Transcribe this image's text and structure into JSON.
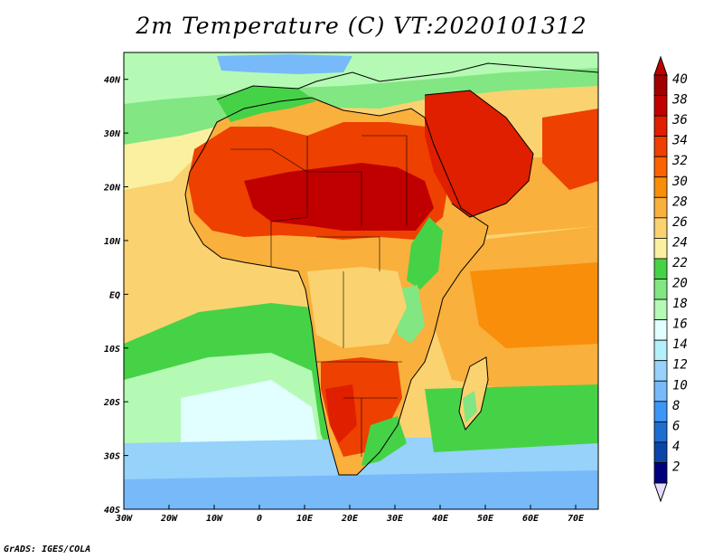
{
  "title": "2m Temperature (C) VT:2020101312",
  "credit": "GrADS: IGES/COLA",
  "map": {
    "lon_range": [
      -30,
      75
    ],
    "lat_range": [
      -40,
      45
    ],
    "x_ticks": [
      {
        "value": -30,
        "label": "30W"
      },
      {
        "value": -20,
        "label": "20W"
      },
      {
        "value": -10,
        "label": "10W"
      },
      {
        "value": 0,
        "label": "0"
      },
      {
        "value": 10,
        "label": "10E"
      },
      {
        "value": 20,
        "label": "20E"
      },
      {
        "value": 30,
        "label": "30E"
      },
      {
        "value": 40,
        "label": "40E"
      },
      {
        "value": 50,
        "label": "50E"
      },
      {
        "value": 60,
        "label": "60E"
      },
      {
        "value": 70,
        "label": "70E"
      }
    ],
    "y_ticks": [
      {
        "value": 40,
        "label": "40N"
      },
      {
        "value": 30,
        "label": "30N"
      },
      {
        "value": 20,
        "label": "20N"
      },
      {
        "value": 10,
        "label": "10N"
      },
      {
        "value": 0,
        "label": "EQ"
      },
      {
        "value": -10,
        "label": "10S"
      },
      {
        "value": -20,
        "label": "20S"
      },
      {
        "value": -30,
        "label": "30S"
      },
      {
        "value": -40,
        "label": "40S"
      }
    ]
  },
  "colorbar": {
    "levels": [
      "40",
      "38",
      "36",
      "34",
      "32",
      "30",
      "28",
      "26",
      "24",
      "22",
      "20",
      "18",
      "16",
      "14",
      "12",
      "10",
      "8",
      "6",
      "4",
      "2"
    ],
    "colors": [
      "#a00000",
      "#c00000",
      "#e01e00",
      "#ee4000",
      "#fb6200",
      "#f88e0a",
      "#f9b03c",
      "#fbd270",
      "#fbf0a0",
      "#46d246",
      "#82e682",
      "#b4fab4",
      "#e1ffff",
      "#b4f0fa",
      "#96d2fa",
      "#78b9fa",
      "#3c96f5",
      "#1e6ed2",
      "#0a46aa",
      "#00007d"
    ],
    "top_color": "#c00000",
    "bottom_color": "#e6dcff"
  }
}
